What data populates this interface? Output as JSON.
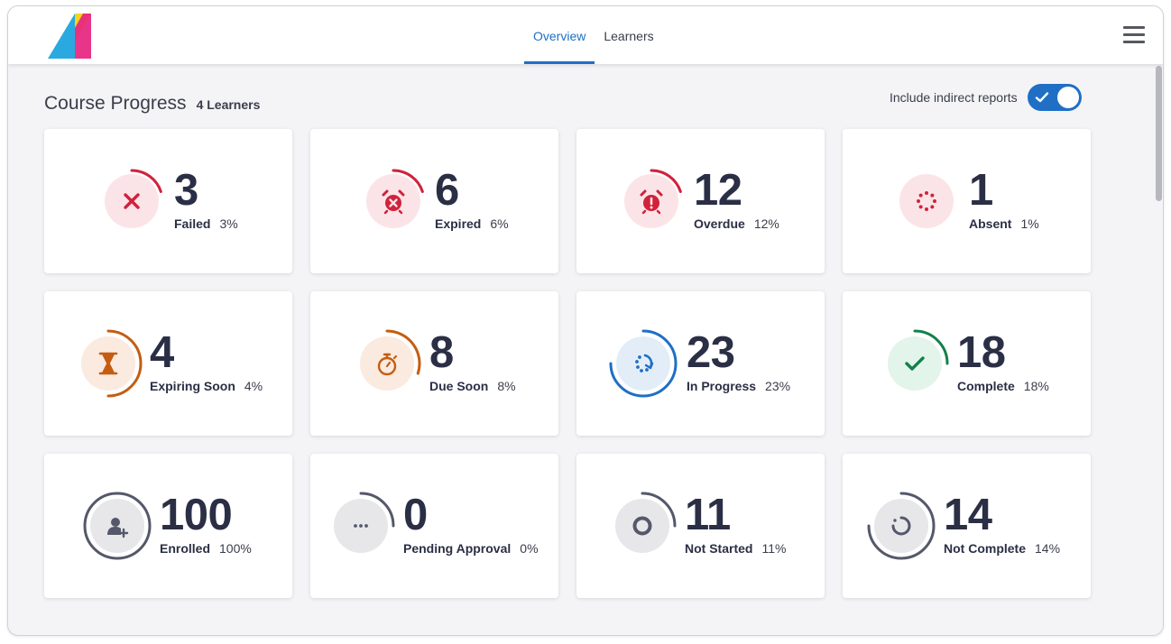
{
  "header": {
    "tabs": [
      {
        "label": "Overview",
        "active": true
      },
      {
        "label": "Learners",
        "active": false
      }
    ],
    "menu_icon": "hamburger-menu-icon",
    "brand_colors": [
      "#2aa9e0",
      "#f5d41e",
      "#e6247f"
    ]
  },
  "course_progress": {
    "title": "Course Progress",
    "learner_count": "4 Learners",
    "toggle": {
      "label": "Include indirect reports",
      "on": true,
      "color": "#1f6fc5"
    }
  },
  "cards": [
    {
      "key": "failed",
      "value": "3",
      "label": "Failed",
      "percent": "3%",
      "progress": 0.2,
      "icon": "x-icon",
      "color": "#d0223b",
      "bg": "#fbe4e7"
    },
    {
      "key": "expired",
      "value": "6",
      "label": "Expired",
      "percent": "6%",
      "progress": 0.2,
      "icon": "alarm-clock-x-icon",
      "color": "#d0223b",
      "bg": "#fbe4e7"
    },
    {
      "key": "overdue",
      "value": "12",
      "label": "Overdue",
      "percent": "12%",
      "progress": 0.2,
      "icon": "alarm-clock-exclamation-icon",
      "color": "#d0223b",
      "bg": "#fbe4e7"
    },
    {
      "key": "absent",
      "value": "1",
      "label": "Absent",
      "percent": "1%",
      "progress": 0,
      "icon": "dotted-circle-icon",
      "color": "#d0223b",
      "bg": "#fbe4e7"
    },
    {
      "key": "expiring-soon",
      "value": "4",
      "label": "Expiring Soon",
      "percent": "4%",
      "progress": 0.5,
      "icon": "hourglass-icon",
      "color": "#c45d12",
      "bg": "#fbeadf"
    },
    {
      "key": "due-soon",
      "value": "8",
      "label": "Due Soon",
      "percent": "8%",
      "progress": 0.3,
      "icon": "stopwatch-icon",
      "color": "#c45d12",
      "bg": "#fbeadf"
    },
    {
      "key": "in-progress",
      "value": "23",
      "label": "In Progress",
      "percent": "23%",
      "progress": 0.75,
      "icon": "progress-arrow-icon",
      "color": "#1f6fc5",
      "bg": "#e3edf8"
    },
    {
      "key": "complete",
      "value": "18",
      "label": "Complete",
      "percent": "18%",
      "progress": 0.25,
      "icon": "check-icon",
      "color": "#13804a",
      "bg": "#e3f4ea"
    },
    {
      "key": "enrolled",
      "value": "100",
      "label": "Enrolled",
      "percent": "100%",
      "progress": 1.0,
      "icon": "user-add-icon",
      "color": "#55586a",
      "bg": "#e7e7ea"
    },
    {
      "key": "pending-approval",
      "value": "0",
      "label": "Pending Approval",
      "percent": "0%",
      "progress": 0.25,
      "icon": "ellipsis-icon",
      "color": "#55586a",
      "bg": "#e7e7ea"
    },
    {
      "key": "not-started",
      "value": "11",
      "label": "Not Started",
      "percent": "11%",
      "progress": 0.25,
      "icon": "hollow-circle-icon",
      "color": "#55586a",
      "bg": "#e7e7ea"
    },
    {
      "key": "not-complete",
      "value": "14",
      "label": "Not Complete",
      "percent": "14%",
      "progress": 0.75,
      "icon": "partial-circle-icon",
      "color": "#55586a",
      "bg": "#e7e7ea"
    }
  ]
}
